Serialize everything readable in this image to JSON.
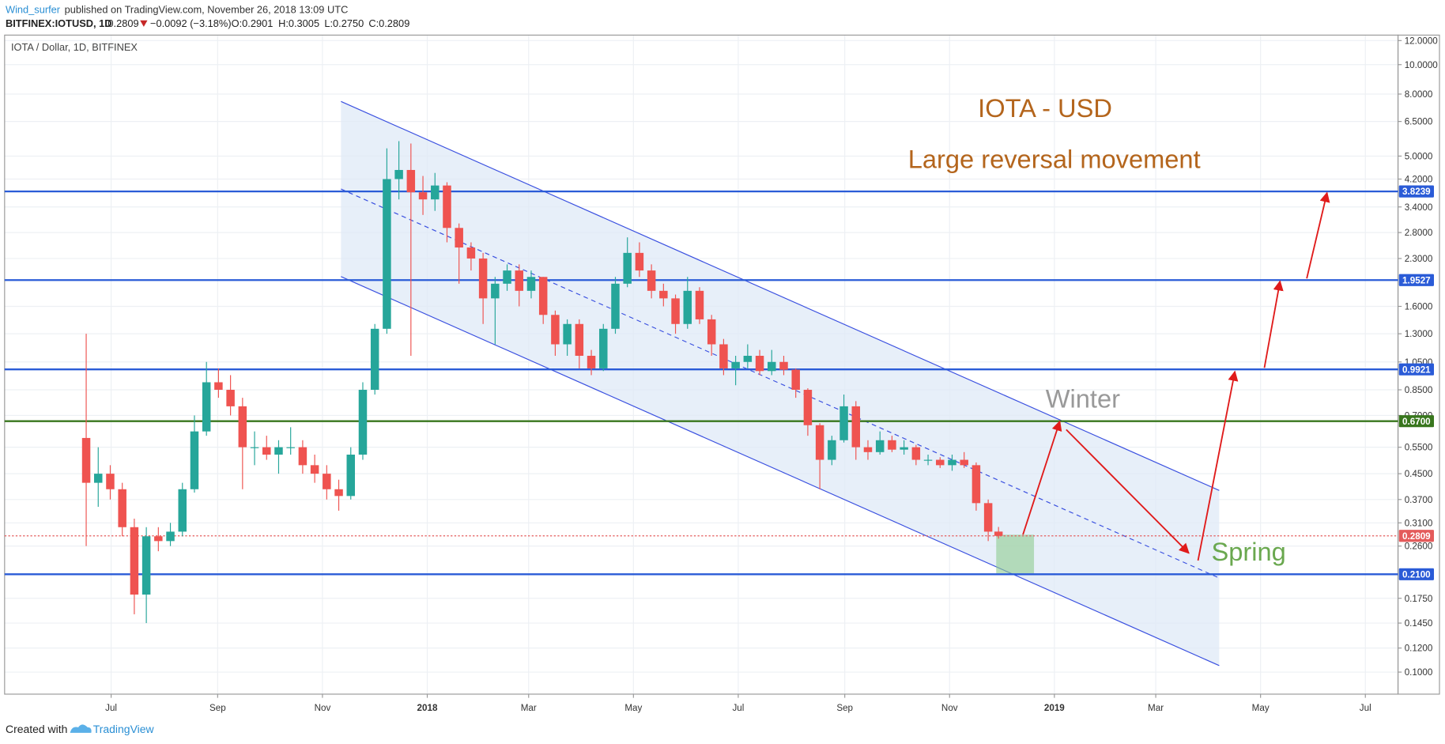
{
  "header": {
    "author": "Wind_surfer",
    "published": "published on TradingView.com, November 26, 2018 13:09 UTC",
    "symbol": "BITFINEX:IOTUSD, 1D",
    "last": "0.2809",
    "change": "−0.0092 (−3.18%)",
    "open": "O:0.2901",
    "high": "H:0.3005",
    "low": "L:0.2750",
    "close": "C:0.2809"
  },
  "footer": {
    "created": "Created with",
    "brand": "TradingView"
  },
  "chart_data": {
    "type": "candlestick",
    "title": "IOTA / Dollar, 1D, BITFINEX",
    "annotations": [
      "IOTA - USD",
      "Large reversal movement",
      "Winter",
      "Spring"
    ],
    "log_scale": true,
    "grid": true,
    "up_color": "#26a69a",
    "down_color": "#ef5350",
    "xlim": [
      "2017-04-30",
      "2019-07-20"
    ],
    "xticks": [
      {
        "value": "2017-07-01",
        "label": "Jul"
      },
      {
        "value": "2017-09-01",
        "label": "Sep"
      },
      {
        "value": "2017-11-01",
        "label": "Nov"
      },
      {
        "value": "2018-01-01",
        "label": "2018"
      },
      {
        "value": "2018-03-01",
        "label": "Mar"
      },
      {
        "value": "2018-05-01",
        "label": "May"
      },
      {
        "value": "2018-07-01",
        "label": "Jul"
      },
      {
        "value": "2018-09-01",
        "label": "Sep"
      },
      {
        "value": "2018-11-01",
        "label": "Nov"
      },
      {
        "value": "2019-01-01",
        "label": "2019"
      },
      {
        "value": "2019-03-01",
        "label": "Mar"
      },
      {
        "value": "2019-05-01",
        "label": "May"
      },
      {
        "value": "2019-07-01",
        "label": "Jul"
      }
    ],
    "ylim": [
      0.0846,
      12.51
    ],
    "yticks": [
      {
        "value": 12,
        "label": "12.0000"
      },
      {
        "value": 10,
        "label": "10.0000"
      },
      {
        "value": 8,
        "label": "8.0000"
      },
      {
        "value": 6.5,
        "label": "6.5000"
      },
      {
        "value": 5,
        "label": "5.0000"
      },
      {
        "value": 4.2,
        "label": "4.2000"
      },
      {
        "value": 3.4,
        "label": "3.4000"
      },
      {
        "value": 2.8,
        "label": "2.8000"
      },
      {
        "value": 2.3,
        "label": "2.3000"
      },
      {
        "value": 1.6,
        "label": "1.6000"
      },
      {
        "value": 1.3,
        "label": "1.3000"
      },
      {
        "value": 1.05,
        "label": "1.0500"
      },
      {
        "value": 0.85,
        "label": "0.8500"
      },
      {
        "value": 0.7,
        "label": "0.7000"
      },
      {
        "value": 0.55,
        "label": "0.5500"
      },
      {
        "value": 0.45,
        "label": "0.4500"
      },
      {
        "value": 0.37,
        "label": "0.3700"
      },
      {
        "value": 0.31,
        "label": "0.3100"
      },
      {
        "value": 0.26,
        "label": "0.2600"
      },
      {
        "value": 0.175,
        "label": "0.1750"
      },
      {
        "value": 0.145,
        "label": "0.1450"
      },
      {
        "value": 0.12,
        "label": "0.1200"
      },
      {
        "value": 0.1,
        "label": "0.1000"
      }
    ],
    "levels": [
      {
        "value": 3.8239,
        "label": "3.8239",
        "color": "#2a5bd7",
        "style": "solid"
      },
      {
        "value": 1.9527,
        "label": "1.9527",
        "color": "#2a5bd7",
        "style": "solid"
      },
      {
        "value": 0.9921,
        "label": "0.9921",
        "color": "#2a5bd7",
        "style": "solid"
      },
      {
        "value": 0.67,
        "label": "0.6700",
        "color": "#38761d",
        "style": "solid"
      },
      {
        "value": 0.2809,
        "label": "0.2809",
        "color": "#e45b5b",
        "style": "dotted"
      },
      {
        "value": 0.21,
        "label": "0.2100",
        "color": "#2a5bd7",
        "style": "solid"
      }
    ],
    "x": [
      "2017-06-13",
      "2017-06-20",
      "2017-06-27",
      "2017-07-04",
      "2017-07-11",
      "2017-07-18",
      "2017-07-25",
      "2017-08-01",
      "2017-08-08",
      "2017-08-15",
      "2017-08-22",
      "2017-08-29",
      "2017-09-05",
      "2017-09-12",
      "2017-09-19",
      "2017-09-26",
      "2017-10-03",
      "2017-10-10",
      "2017-10-17",
      "2017-10-24",
      "2017-10-31",
      "2017-11-07",
      "2017-11-14",
      "2017-11-21",
      "2017-11-28",
      "2017-12-05",
      "2017-12-12",
      "2017-12-19",
      "2017-12-26",
      "2018-01-02",
      "2018-01-09",
      "2018-01-16",
      "2018-01-23",
      "2018-01-30",
      "2018-02-06",
      "2018-02-13",
      "2018-02-20",
      "2018-02-27",
      "2018-03-06",
      "2018-03-13",
      "2018-03-20",
      "2018-03-27",
      "2018-04-03",
      "2018-04-10",
      "2018-04-17",
      "2018-04-24",
      "2018-05-01",
      "2018-05-08",
      "2018-05-15",
      "2018-05-22",
      "2018-05-29",
      "2018-06-05",
      "2018-06-12",
      "2018-06-19",
      "2018-06-26",
      "2018-07-03",
      "2018-07-10",
      "2018-07-17",
      "2018-07-24",
      "2018-07-31",
      "2018-08-07",
      "2018-08-14",
      "2018-08-21",
      "2018-08-28",
      "2018-09-04",
      "2018-09-11",
      "2018-09-18",
      "2018-09-25",
      "2018-10-02",
      "2018-10-09",
      "2018-10-16",
      "2018-10-23",
      "2018-10-30",
      "2018-11-06",
      "2018-11-13",
      "2018-11-20",
      "2018-11-26"
    ],
    "open": [
      0.59,
      0.42,
      0.45,
      0.4,
      0.3,
      0.18,
      0.28,
      0.27,
      0.29,
      0.4,
      0.62,
      0.9,
      0.85,
      0.75,
      0.55,
      0.55,
      0.52,
      0.55,
      0.55,
      0.48,
      0.45,
      0.4,
      0.38,
      0.52,
      0.85,
      1.35,
      4.2,
      4.5,
      3.8,
      3.6,
      4.0,
      2.9,
      2.5,
      2.3,
      1.7,
      1.9,
      2.1,
      1.8,
      2.0,
      1.5,
      1.2,
      1.4,
      1.1,
      1.0,
      1.35,
      1.9,
      2.4,
      2.1,
      1.8,
      1.7,
      1.4,
      1.8,
      1.45,
      1.2,
      1.0,
      1.05,
      1.1,
      0.98,
      1.05,
      0.99,
      0.85,
      0.65,
      0.5,
      0.58,
      0.75,
      0.55,
      0.53,
      0.58,
      0.54,
      0.55,
      0.5,
      0.5,
      0.48,
      0.5,
      0.48,
      0.36,
      0.2901
    ],
    "high": [
      1.3,
      0.55,
      0.48,
      0.42,
      0.32,
      0.3,
      0.3,
      0.31,
      0.42,
      0.7,
      1.05,
      1.0,
      0.95,
      0.8,
      0.62,
      0.6,
      0.58,
      0.64,
      0.58,
      0.52,
      0.48,
      0.43,
      0.55,
      0.9,
      1.4,
      5.3,
      5.6,
      5.5,
      4.3,
      4.4,
      4.1,
      3.0,
      2.6,
      2.4,
      2.0,
      2.2,
      2.2,
      2.1,
      2.0,
      1.55,
      1.45,
      1.45,
      1.15,
      1.4,
      2.0,
      2.7,
      2.6,
      2.2,
      1.9,
      1.75,
      2.0,
      1.85,
      1.5,
      1.25,
      1.1,
      1.2,
      1.15,
      1.15,
      1.1,
      1.0,
      0.86,
      0.66,
      0.6,
      0.82,
      0.78,
      0.58,
      0.62,
      0.6,
      0.58,
      0.56,
      0.52,
      0.51,
      0.52,
      0.53,
      0.49,
      0.37,
      0.3005
    ],
    "low": [
      0.26,
      0.35,
      0.37,
      0.28,
      0.155,
      0.145,
      0.25,
      0.26,
      0.28,
      0.39,
      0.6,
      0.8,
      0.7,
      0.4,
      0.48,
      0.5,
      0.45,
      0.52,
      0.45,
      0.42,
      0.37,
      0.34,
      0.37,
      0.5,
      0.82,
      1.3,
      3.6,
      1.1,
      3.2,
      3.3,
      2.6,
      1.9,
      2.1,
      1.4,
      1.2,
      1.8,
      1.6,
      1.7,
      1.4,
      1.1,
      1.1,
      1.0,
      0.95,
      0.98,
      1.3,
      1.85,
      2.0,
      1.7,
      1.6,
      1.3,
      1.35,
      1.4,
      1.1,
      0.95,
      0.88,
      1.0,
      0.95,
      0.95,
      0.95,
      0.8,
      0.6,
      0.4,
      0.48,
      0.57,
      0.5,
      0.5,
      0.52,
      0.53,
      0.52,
      0.48,
      0.48,
      0.47,
      0.46,
      0.47,
      0.34,
      0.27,
      0.275
    ],
    "close": [
      0.42,
      0.45,
      0.4,
      0.3,
      0.18,
      0.28,
      0.27,
      0.29,
      0.4,
      0.62,
      0.9,
      0.85,
      0.75,
      0.55,
      0.55,
      0.52,
      0.55,
      0.55,
      0.48,
      0.45,
      0.4,
      0.38,
      0.52,
      0.85,
      1.35,
      4.2,
      4.5,
      3.8,
      3.6,
      4.0,
      2.9,
      2.5,
      2.3,
      1.7,
      1.9,
      2.1,
      1.8,
      2.0,
      1.5,
      1.2,
      1.4,
      1.1,
      1.0,
      1.35,
      1.9,
      2.4,
      2.1,
      1.8,
      1.7,
      1.4,
      1.8,
      1.45,
      1.2,
      1.0,
      1.05,
      1.1,
      0.98,
      1.05,
      0.99,
      0.85,
      0.65,
      0.5,
      0.58,
      0.75,
      0.55,
      0.53,
      0.58,
      0.54,
      0.55,
      0.5,
      0.5,
      0.48,
      0.5,
      0.48,
      0.36,
      0.29,
      0.2809
    ]
  }
}
